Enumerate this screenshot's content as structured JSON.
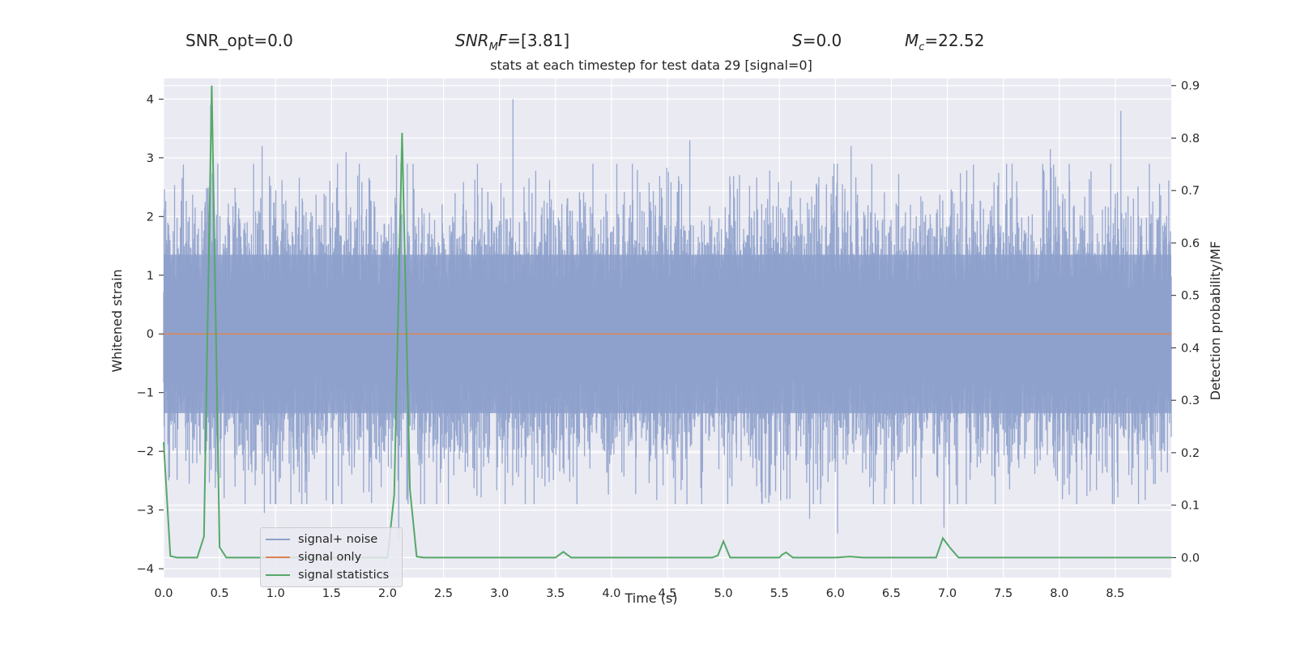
{
  "header": {
    "snr_opt": "SNR_opt=0.0",
    "snr_mf_lhs": "SNR",
    "snr_mf_sub": "M",
    "snr_mf_lhs2": "F",
    "snr_mf_value": "=[3.81]",
    "s_symbol": "S",
    "s_value": "=0.0",
    "mc_symbol": "M",
    "mc_sub": "c",
    "mc_value": "=22.52"
  },
  "colors": {
    "background": "#eaeaf2",
    "grid": "#ffffff",
    "noise": "#8da0cb",
    "signal_only": "#dd8452",
    "statistics": "#55a868"
  },
  "chart_data": {
    "type": "line",
    "title": "stats at each timestep for test data 29 [signal=0]",
    "xlabel": "Time (s)",
    "ylabel": "Whitened strain",
    "y2label": "Detection probability/MF",
    "xlim": [
      0.0,
      9.0
    ],
    "ylim": [
      -4.15,
      4.35
    ],
    "y2lim": [
      -0.038,
      0.9135
    ],
    "x_ticks": [
      "0.0",
      "0.5",
      "1.0",
      "1.5",
      "2.0",
      "2.5",
      "3.0",
      "3.5",
      "4.0",
      "4.5",
      "5.0",
      "5.5",
      "6.0",
      "6.5",
      "7.0",
      "7.5",
      "8.0",
      "8.5"
    ],
    "y_ticks": [
      "4",
      "3",
      "2",
      "1",
      "0",
      "−1",
      "−2",
      "−3",
      "−4"
    ],
    "y2_ticks": [
      "0.9",
      "0.8",
      "0.7",
      "0.6",
      "0.5",
      "0.4",
      "0.3",
      "0.2",
      "0.1",
      "0.0"
    ],
    "legend_position": "lower left",
    "grid": true,
    "series": [
      {
        "name": "signal+ noise",
        "style": "dense-noise",
        "sample_rate": 2048,
        "typical_range": [
          -1.6,
          1.6
        ],
        "peaks": [
          {
            "x": 0.42,
            "y": 3.9
          },
          {
            "x": 0.88,
            "y": 3.2
          },
          {
            "x": 1.63,
            "y": 3.1
          },
          {
            "x": 2.08,
            "y": 3.05
          },
          {
            "x": 3.12,
            "y": 4.0
          },
          {
            "x": 4.7,
            "y": 3.3
          },
          {
            "x": 6.14,
            "y": 3.2
          },
          {
            "x": 7.92,
            "y": 3.15
          },
          {
            "x": 8.55,
            "y": 3.8
          },
          {
            "x": 2.1,
            "y": -3.5
          },
          {
            "x": 6.02,
            "y": -3.4
          },
          {
            "x": 6.97,
            "y": -3.3
          },
          {
            "x": 0.9,
            "y": -3.05
          },
          {
            "x": 5.77,
            "y": -3.15
          }
        ]
      },
      {
        "name": "signal only",
        "style": "flat",
        "x": [
          0.0,
          9.0
        ],
        "y": [
          0.0,
          0.0
        ]
      },
      {
        "name": "signal statistics",
        "axis": "right",
        "x": [
          0.0,
          0.06,
          0.12,
          0.3,
          0.36,
          0.43,
          0.5,
          0.56,
          0.9,
          1.2,
          1.5,
          1.8,
          2.0,
          2.06,
          2.13,
          2.2,
          2.26,
          2.32,
          2.5,
          3.0,
          3.5,
          3.57,
          3.64,
          4.0,
          4.5,
          4.9,
          4.95,
          5.0,
          5.06,
          5.5,
          5.52,
          5.56,
          5.62,
          6.0,
          6.13,
          6.25,
          6.5,
          6.9,
          6.96,
          7.02,
          7.1,
          7.5,
          8.0,
          8.5,
          9.0
        ],
        "y": [
          0.22,
          0.003,
          0.0,
          0.0,
          0.04,
          0.9,
          0.02,
          0.0,
          0.0,
          0.0,
          0.0,
          0.0,
          0.0,
          0.12,
          0.81,
          0.13,
          0.002,
          0.0,
          0.0,
          0.0,
          0.0,
          0.011,
          0.0,
          0.0,
          0.0,
          0.0,
          0.004,
          0.031,
          0.0,
          0.0,
          0.005,
          0.01,
          0.0,
          0.0,
          0.002,
          0.0,
          0.0,
          0.0,
          0.037,
          0.02,
          0.0,
          0.0,
          0.0,
          0.0,
          0.0
        ]
      }
    ]
  }
}
